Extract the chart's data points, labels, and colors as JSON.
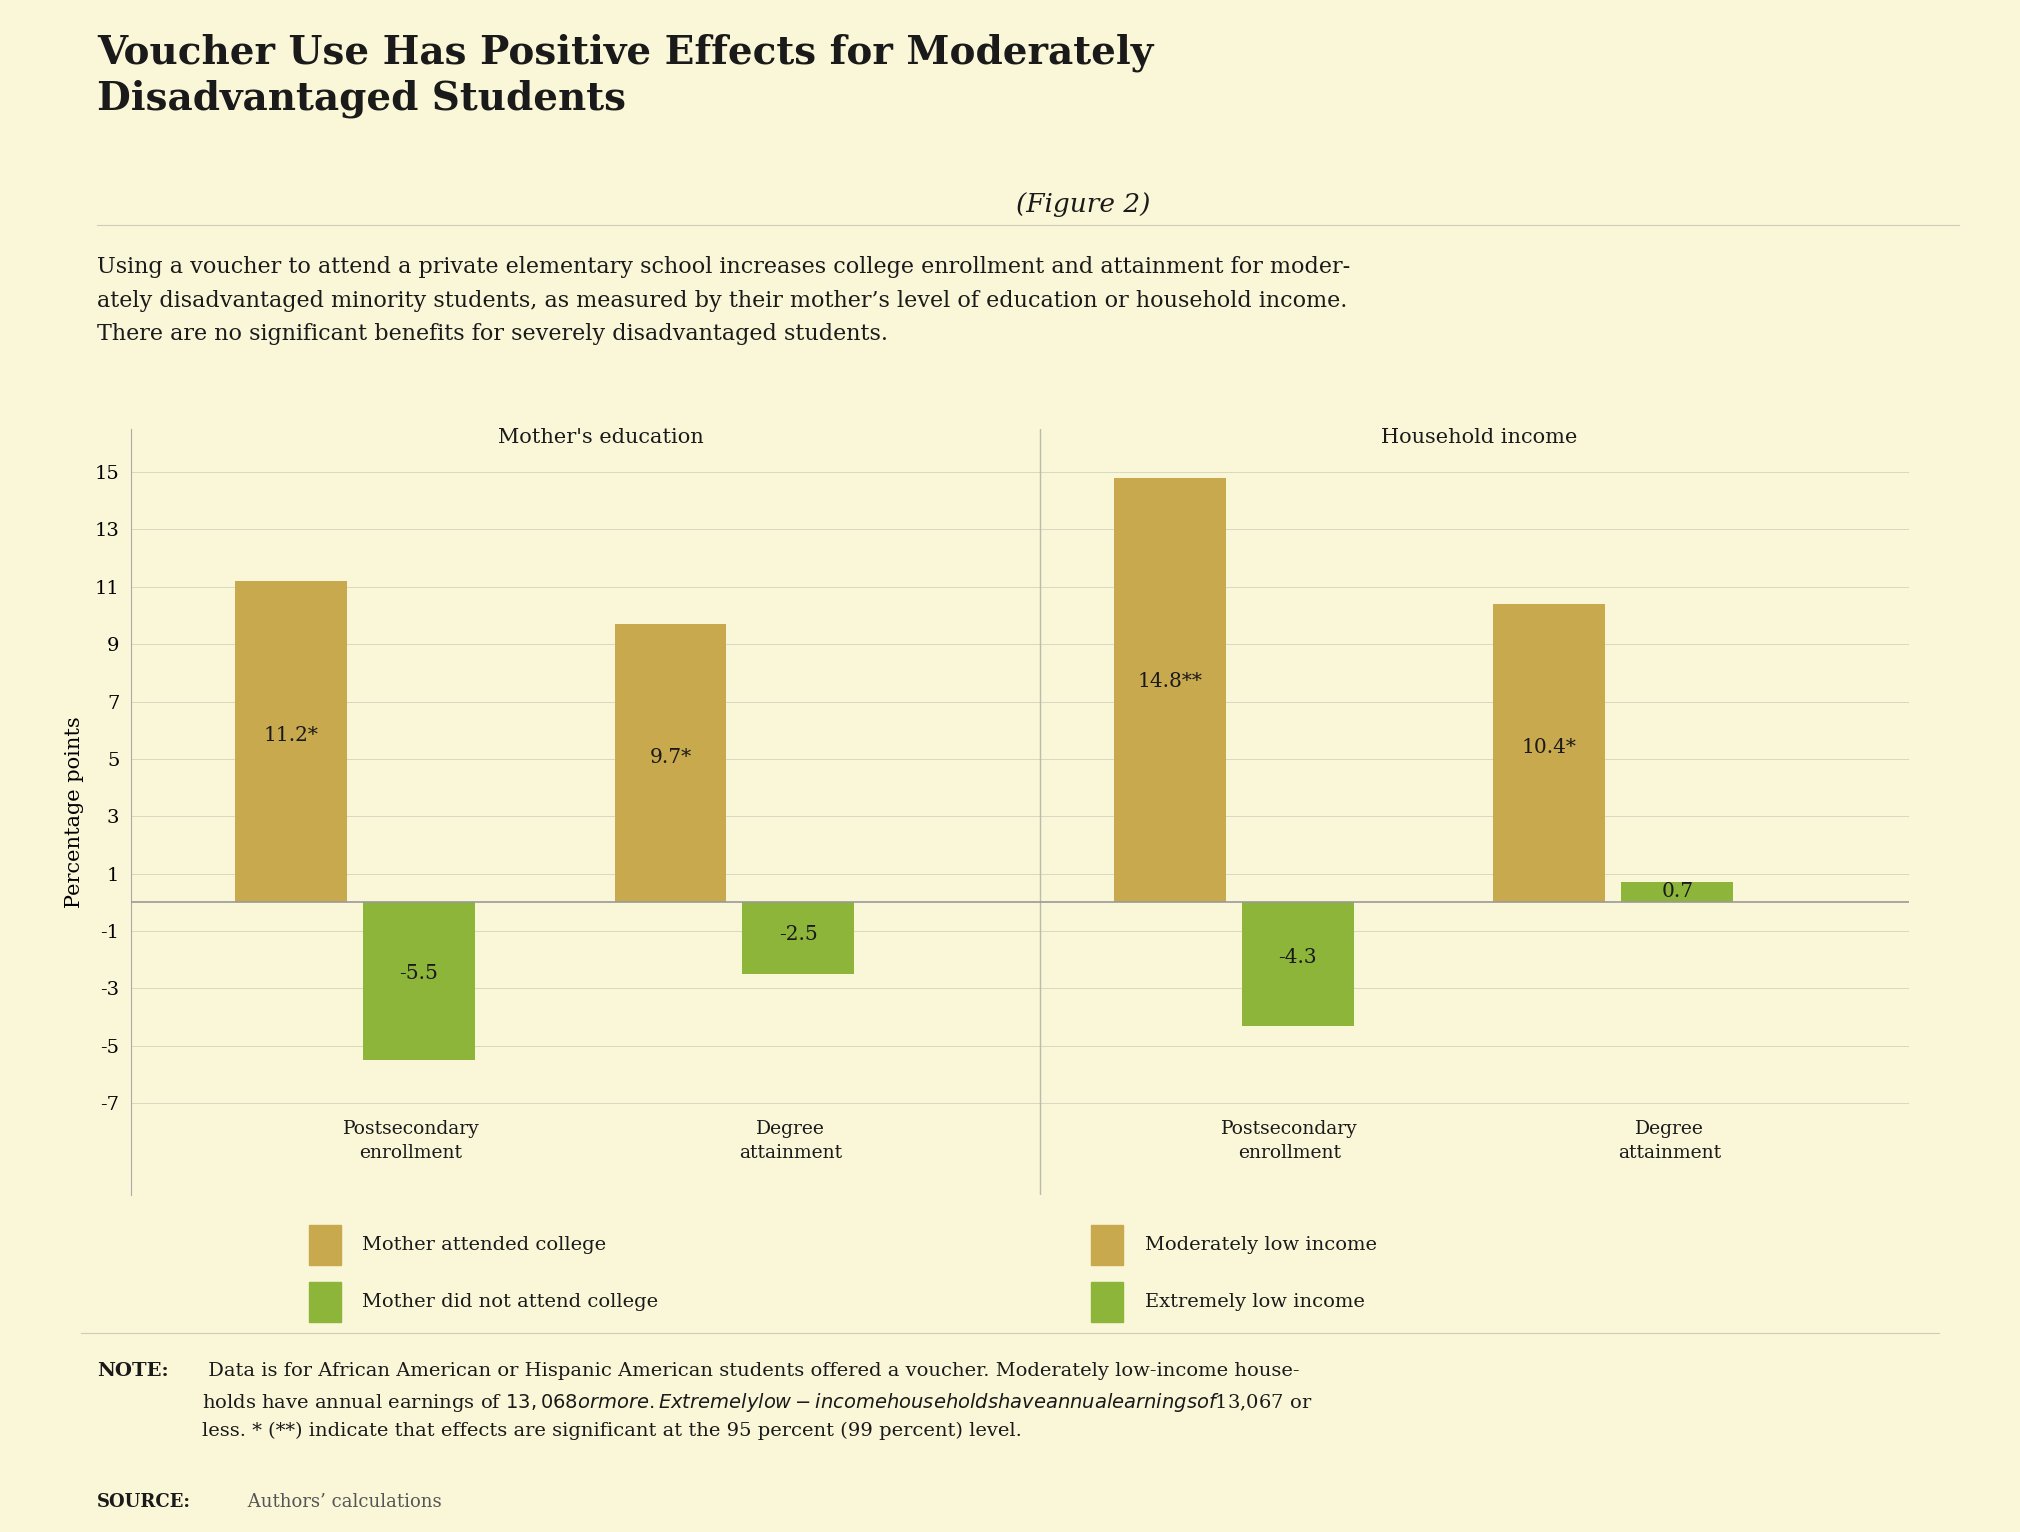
{
  "title_bold": "Voucher Use Has Positive Effects for Moderately\nDisadvantaged Students",
  "title_italic": "(Figure 2)",
  "subtitle": "Using a voucher to attend a private elementary school increases college enrollment and attainment for moder-\nately disadvantaged minority students, as measured by their mother’s level of education or household income.\nThere are no significant benefits for severely disadvantaged students.",
  "header_bg": "#e5e5d5",
  "chart_bg": "#faf6d8",
  "page_bg": "#faf6d8",
  "gold_color": "#c8a94e",
  "green_color": "#8cb53a",
  "values": [
    11.2,
    -5.5,
    9.7,
    -2.5,
    14.8,
    -4.3,
    10.4,
    0.7
  ],
  "bar_labels_values": [
    "11.2*",
    "-5.5",
    "9.7*",
    "-2.5",
    "14.8**",
    "-4.3",
    "10.4*",
    "0.7"
  ],
  "bar_colors": [
    "gold",
    "green",
    "gold",
    "green",
    "gold",
    "green",
    "gold",
    "green"
  ],
  "ylim": [
    -7,
    15
  ],
  "yticks": [
    -7,
    -5,
    -3,
    -1,
    1,
    3,
    5,
    7,
    9,
    11,
    13,
    15
  ],
  "ylabel": "Percentage points",
  "group_section_labels": [
    "Mother's education",
    "Household income"
  ],
  "xcat_labels": [
    "Postsecondary\nenrollment",
    "Degree\nattainment",
    "Postsecondary\nenrollment",
    "Degree\nattainment"
  ],
  "legend": [
    {
      "label": "Mother attended college",
      "color": "#c8a94e"
    },
    {
      "label": "Mother did not attend college",
      "color": "#8cb53a"
    },
    {
      "label": "Moderately low income",
      "color": "#c8a94e"
    },
    {
      "label": "Extremely low income",
      "color": "#8cb53a"
    }
  ],
  "note_bold": "NOTE:",
  "note_text": " Data is for African American or Hispanic American students offered a voucher. Moderately low-income house-\nholds have annual earnings of $13,068 or more. Extremely low-income households have annual earnings of $13,067 or\nless. * (**) indicate that effects are significant at the 95 percent (99 percent) level.",
  "source_bold": "SOURCE:",
  "source_text": " Authors’ calculations"
}
